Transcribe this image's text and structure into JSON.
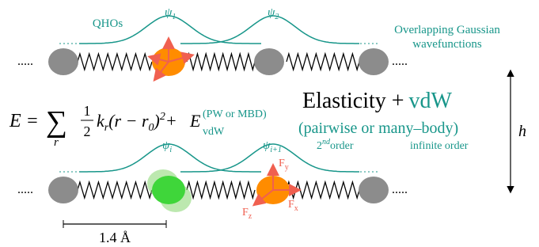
{
  "top": {
    "qhos": "QHOs",
    "psi_a": {
      "symbol": "ψ",
      "sub": "1"
    },
    "psi_b": {
      "symbol": "ψ",
      "sub": "2"
    },
    "overlap": [
      "Overlapping Gaussian",
      "wavefunctions"
    ],
    "dots": "....."
  },
  "equation": {
    "lhs": "E =",
    "sum": "∑",
    "index": "r",
    "num": "1",
    "den": "2",
    "k": "k",
    "k_sub": "r",
    "paren": "(r − r",
    "r0_sub": "0",
    "paren_close": ")",
    "sq": "2",
    "plus": "+",
    "E": "E",
    "E_sub": "vdW",
    "E_sup": "(PW or MBD)"
  },
  "headline": {
    "elasticity": "Elasticity +",
    "vdw": "vdW",
    "kind": "(pairwise or many–body)",
    "second": {
      "num": "2",
      "sup": "nd",
      "word": "order"
    },
    "infinite": "infinite order"
  },
  "height": "h",
  "bottom": {
    "psi_a": {
      "symbol": "ψ",
      "sub": "i"
    },
    "psi_b": {
      "symbol": "ψ",
      "sub": "i+1"
    },
    "fy": {
      "symbol": "F",
      "sub": "y"
    },
    "fx": {
      "symbol": "F",
      "sub": "x"
    },
    "fz": {
      "symbol": "F",
      "sub": "z"
    }
  },
  "scale": "1.4 Å"
}
